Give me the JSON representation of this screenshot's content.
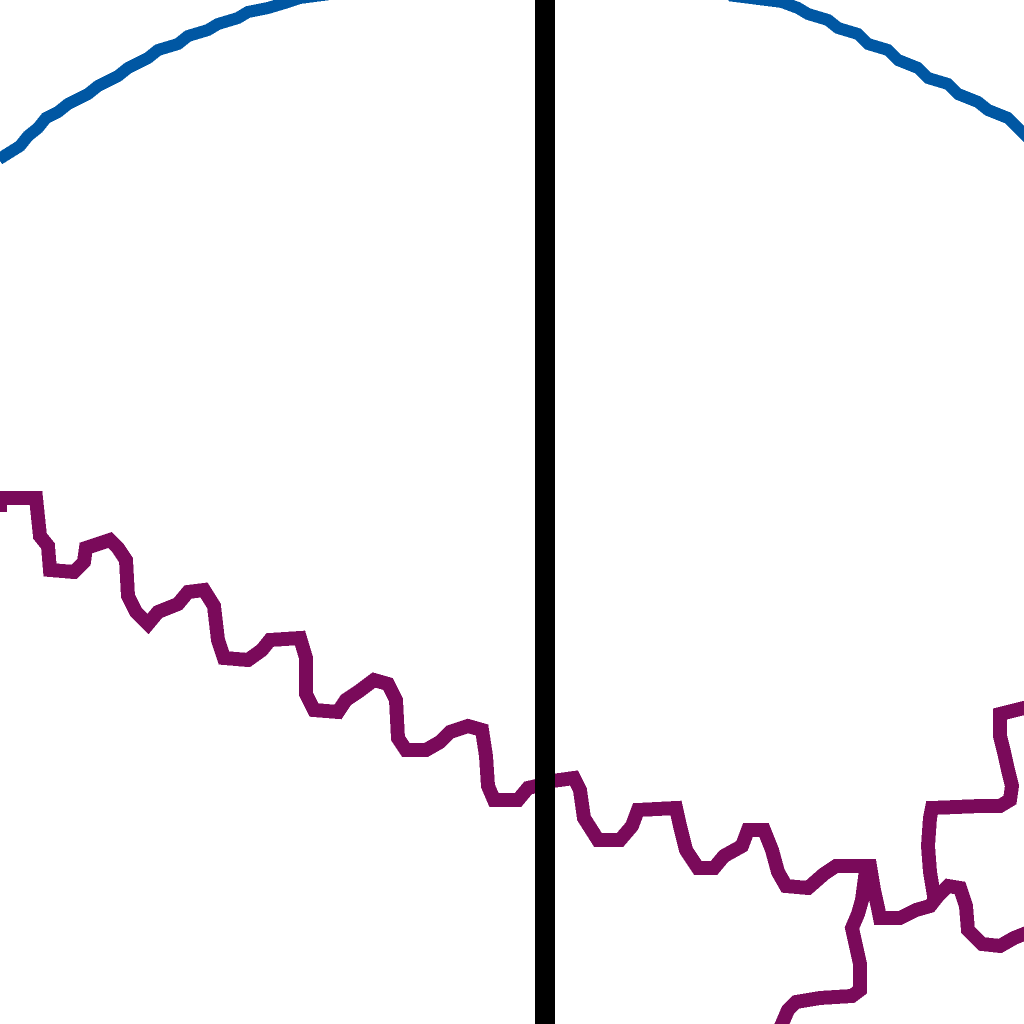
{
  "colors": {
    "background": "#ffffff",
    "blue_arc": "#0057a3",
    "purple_wave": "#7a0a5a",
    "divider": "#000000"
  },
  "elements": {
    "divider": "vertical-black-line",
    "upper_curve": "blue-arc",
    "lower_curve": "purple-zigzag-line"
  }
}
